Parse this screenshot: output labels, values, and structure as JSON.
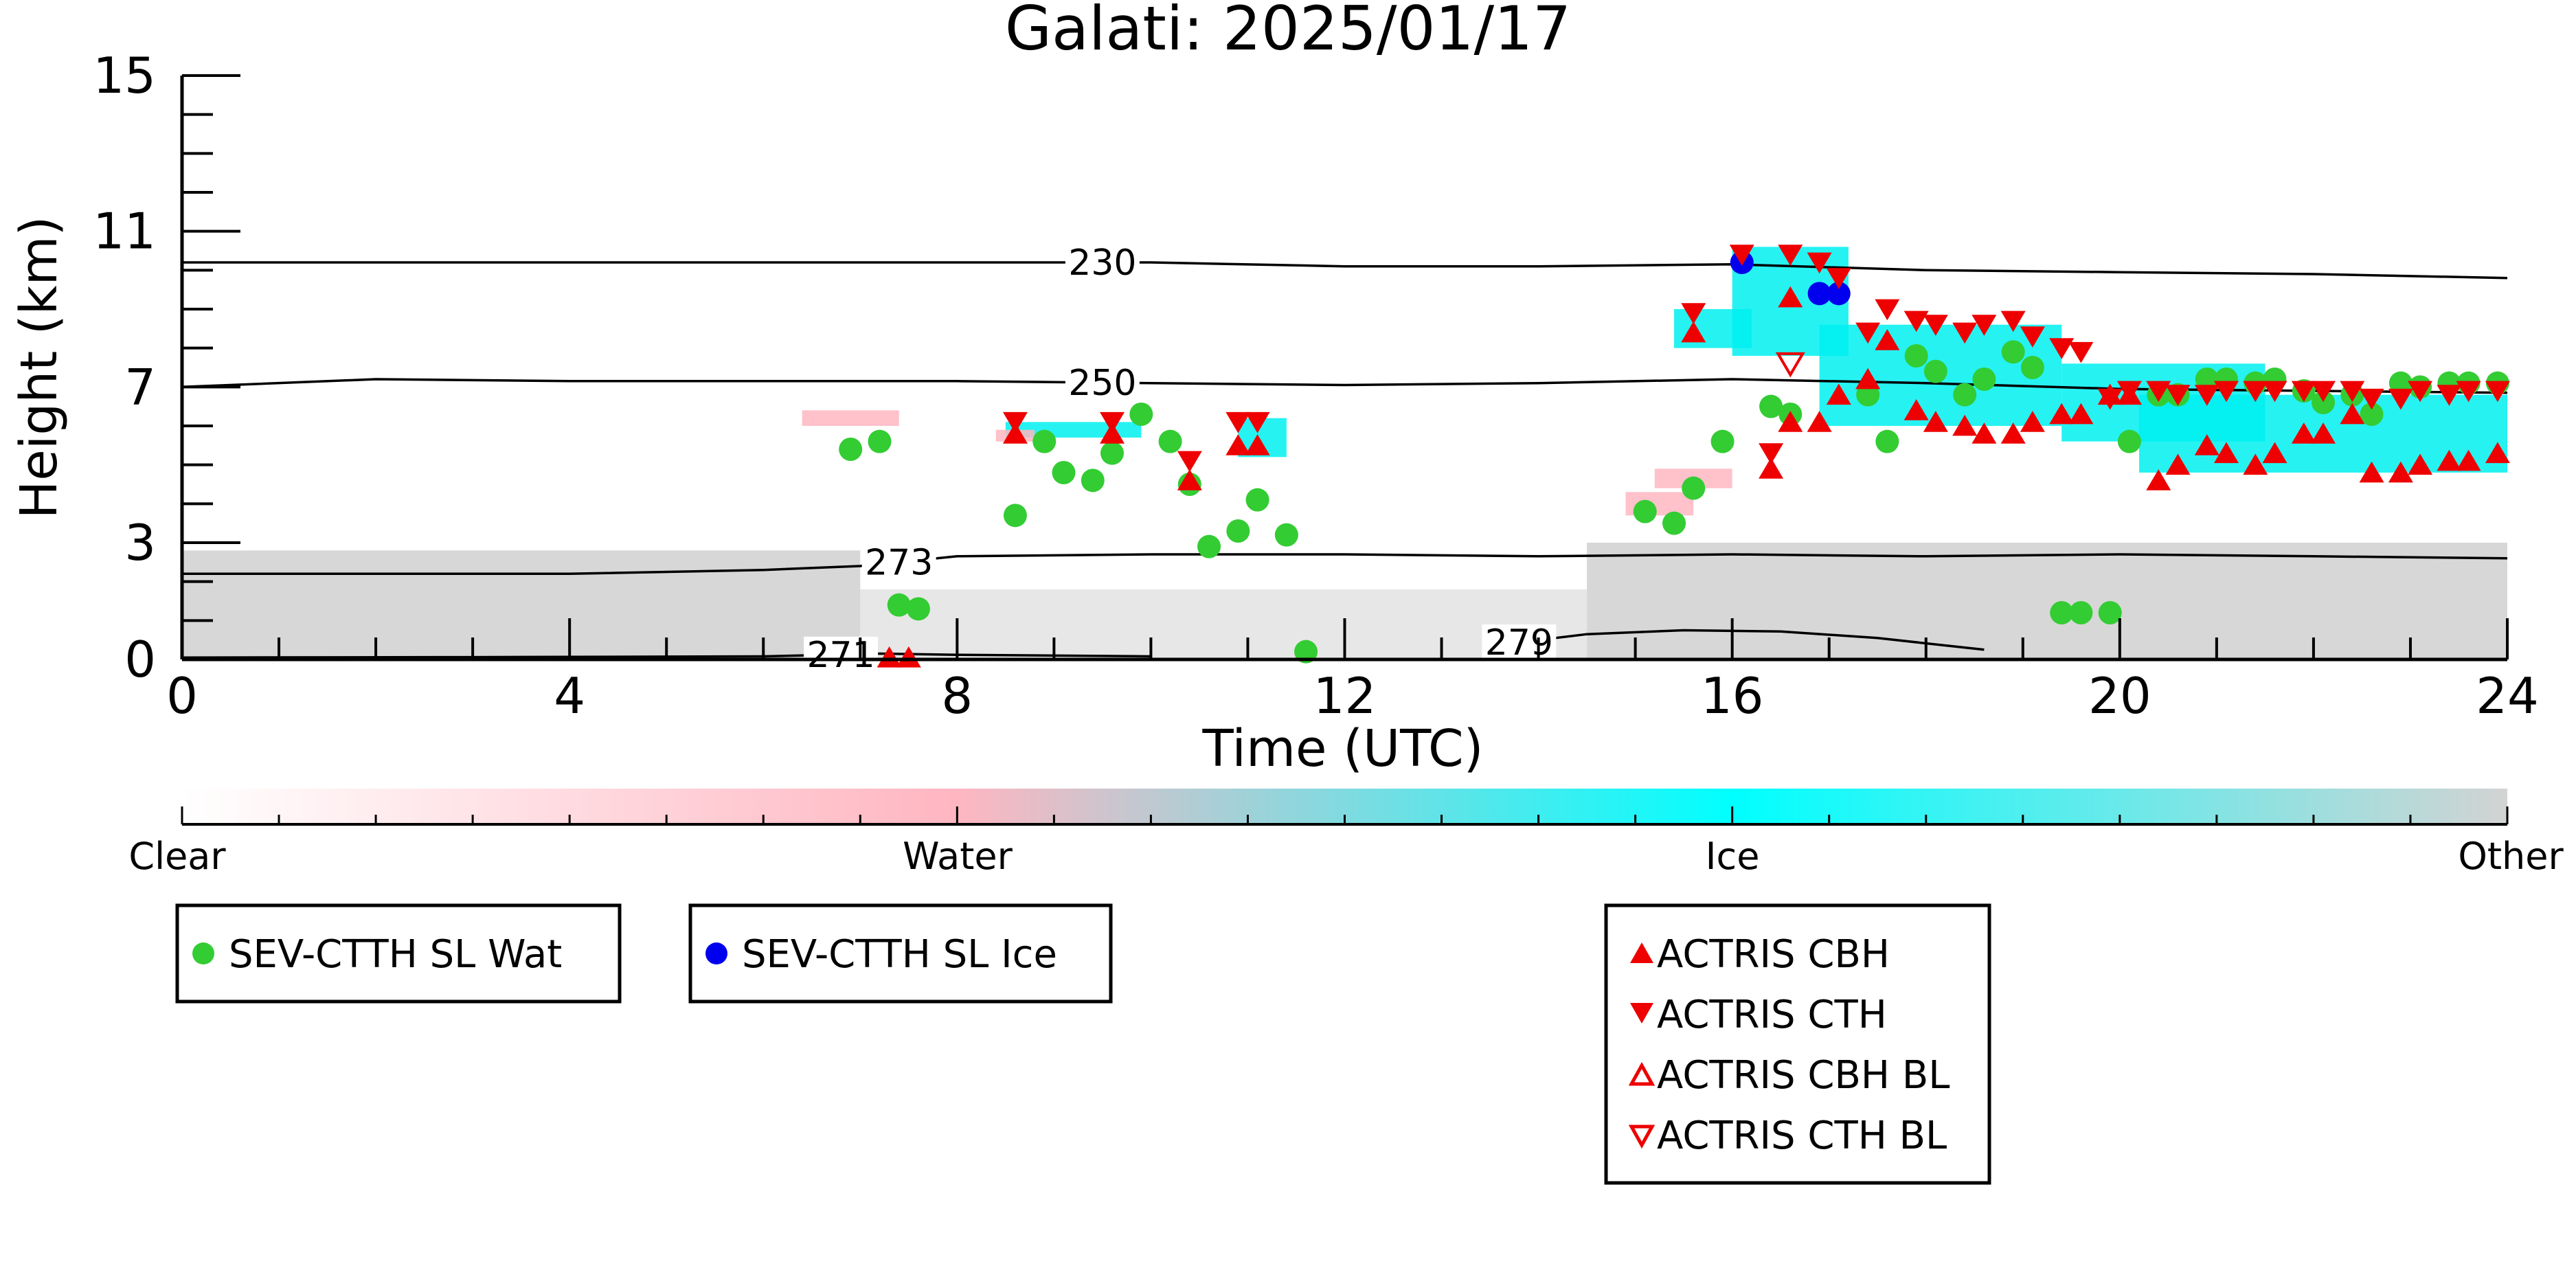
{
  "chart_data": {
    "type": "scatter",
    "title": "Galati: 2025/01/17",
    "xlabel": "Time (UTC)",
    "ylabel": "Height (km)",
    "xlim": [
      0,
      24
    ],
    "ylim": [
      0,
      15
    ],
    "x_ticks": [
      0,
      4,
      8,
      12,
      16,
      20,
      24
    ],
    "y_ticks": [
      0,
      3,
      7,
      11,
      15
    ],
    "contours": [
      {
        "label": "230",
        "label_x": 9.5,
        "points": [
          [
            0,
            10.2
          ],
          [
            4,
            10.2
          ],
          [
            8,
            10.2
          ],
          [
            10,
            10.2
          ],
          [
            12,
            10.1
          ],
          [
            14,
            10.1
          ],
          [
            16,
            10.15
          ],
          [
            18,
            10.0
          ],
          [
            20,
            9.95
          ],
          [
            22,
            9.9
          ],
          [
            24,
            9.8
          ]
        ]
      },
      {
        "label": "250",
        "label_x": 9.5,
        "points": [
          [
            0,
            7.0
          ],
          [
            2,
            7.2
          ],
          [
            4,
            7.15
          ],
          [
            8,
            7.15
          ],
          [
            10,
            7.1
          ],
          [
            12,
            7.05
          ],
          [
            14,
            7.1
          ],
          [
            16,
            7.2
          ],
          [
            18,
            7.1
          ],
          [
            20,
            6.95
          ],
          [
            22,
            6.9
          ],
          [
            24,
            6.85
          ]
        ]
      },
      {
        "label": "273",
        "label_x": 7.4,
        "points": [
          [
            0,
            2.2
          ],
          [
            1,
            2.2
          ],
          [
            2,
            2.2
          ],
          [
            4,
            2.2
          ],
          [
            6,
            2.3
          ],
          [
            7,
            2.4
          ],
          [
            8,
            2.65
          ],
          [
            10,
            2.7
          ],
          [
            12,
            2.7
          ],
          [
            14,
            2.65
          ],
          [
            16,
            2.7
          ],
          [
            18,
            2.65
          ],
          [
            20,
            2.7
          ],
          [
            22,
            2.65
          ],
          [
            24,
            2.6
          ]
        ]
      },
      {
        "label": "279",
        "label_x": 13.8,
        "points": [
          [
            13.5,
            0.35
          ],
          [
            14.5,
            0.65
          ],
          [
            15.5,
            0.75
          ],
          [
            16.5,
            0.72
          ],
          [
            17.5,
            0.55
          ],
          [
            18.6,
            0.25
          ]
        ]
      },
      {
        "label": "271",
        "label_x": 6.8,
        "points": [
          [
            0,
            0.05
          ],
          [
            3,
            0.06
          ],
          [
            6,
            0.08
          ],
          [
            7.2,
            0.15
          ],
          [
            8,
            0.12
          ],
          [
            10,
            0.08
          ]
        ]
      }
    ],
    "colorbar": {
      "labels": [
        "Clear",
        "Water",
        "Ice",
        "Other"
      ],
      "colors": [
        "#ffffff",
        "#ffb6c1",
        "#00ffff",
        "#d3d3d3"
      ]
    },
    "series": [
      {
        "name": "SEV-CTTH SL Wat",
        "marker": "circle",
        "color": "#33cc33",
        "points": [
          [
            6.9,
            5.4
          ],
          [
            7.2,
            5.6
          ],
          [
            7.4,
            1.4
          ],
          [
            7.6,
            1.3
          ],
          [
            8.6,
            3.7
          ],
          [
            8.9,
            5.6
          ],
          [
            9.1,
            4.8
          ],
          [
            9.4,
            4.6
          ],
          [
            9.6,
            5.3
          ],
          [
            9.9,
            6.3
          ],
          [
            10.2,
            5.6
          ],
          [
            10.4,
            4.5
          ],
          [
            10.6,
            2.9
          ],
          [
            10.9,
            3.3
          ],
          [
            11.1,
            4.1
          ],
          [
            11.4,
            3.2
          ],
          [
            11.6,
            0.2
          ],
          [
            15.1,
            3.8
          ],
          [
            15.4,
            3.5
          ],
          [
            15.6,
            4.4
          ],
          [
            15.9,
            5.6
          ],
          [
            16.4,
            6.5
          ],
          [
            16.6,
            6.3
          ],
          [
            17.4,
            6.8
          ],
          [
            17.6,
            5.6
          ],
          [
            17.9,
            7.8
          ],
          [
            18.1,
            7.4
          ],
          [
            18.4,
            6.8
          ],
          [
            18.6,
            7.2
          ],
          [
            18.9,
            7.9
          ],
          [
            19.1,
            7.5
          ],
          [
            19.4,
            1.2
          ],
          [
            19.6,
            1.2
          ],
          [
            19.9,
            1.2
          ],
          [
            20.1,
            5.6
          ],
          [
            20.4,
            6.8
          ],
          [
            20.6,
            6.8
          ],
          [
            20.9,
            7.2
          ],
          [
            21.1,
            7.2
          ],
          [
            21.4,
            7.1
          ],
          [
            21.6,
            7.2
          ],
          [
            21.9,
            6.9
          ],
          [
            22.1,
            6.6
          ],
          [
            22.4,
            6.8
          ],
          [
            22.6,
            6.3
          ],
          [
            22.9,
            7.1
          ],
          [
            23.1,
            7.0
          ],
          [
            23.4,
            7.1
          ],
          [
            23.6,
            7.1
          ],
          [
            23.9,
            7.1
          ]
        ]
      },
      {
        "name": "SEV-CTTH SL Ice",
        "marker": "circle",
        "color": "#0000ee",
        "points": [
          [
            16.1,
            10.2
          ],
          [
            16.9,
            9.4
          ],
          [
            17.1,
            9.4
          ]
        ]
      },
      {
        "name": "ACTRIS CBH",
        "marker": "triangle-up",
        "color": "#ee0000",
        "points": [
          [
            7.3,
            0.05
          ],
          [
            7.5,
            0.05
          ],
          [
            8.6,
            5.8
          ],
          [
            9.6,
            5.8
          ],
          [
            10.4,
            4.6
          ],
          [
            10.9,
            5.5
          ],
          [
            11.1,
            5.5
          ],
          [
            15.6,
            8.4
          ],
          [
            16.4,
            4.9
          ],
          [
            16.6,
            9.3
          ],
          [
            16.6,
            6.1
          ],
          [
            16.9,
            6.1
          ],
          [
            17.1,
            6.8
          ],
          [
            17.4,
            7.2
          ],
          [
            17.6,
            8.2
          ],
          [
            17.9,
            6.4
          ],
          [
            18.1,
            6.1
          ],
          [
            18.4,
            6.0
          ],
          [
            18.6,
            5.8
          ],
          [
            18.9,
            5.8
          ],
          [
            19.1,
            6.1
          ],
          [
            19.4,
            6.3
          ],
          [
            19.6,
            6.3
          ],
          [
            19.9,
            6.8
          ],
          [
            20.1,
            6.8
          ],
          [
            20.4,
            4.6
          ],
          [
            20.6,
            5.0
          ],
          [
            20.9,
            5.5
          ],
          [
            21.1,
            5.3
          ],
          [
            21.4,
            5.0
          ],
          [
            21.6,
            5.3
          ],
          [
            21.9,
            5.8
          ],
          [
            22.1,
            5.8
          ],
          [
            22.4,
            6.3
          ],
          [
            22.6,
            4.8
          ],
          [
            22.9,
            4.8
          ],
          [
            23.1,
            5.0
          ],
          [
            23.4,
            5.1
          ],
          [
            23.6,
            5.1
          ],
          [
            23.9,
            5.3
          ]
        ]
      },
      {
        "name": "ACTRIS CTH",
        "marker": "triangle-down",
        "color": "#ee0000",
        "points": [
          [
            8.6,
            6.1
          ],
          [
            9.6,
            6.1
          ],
          [
            10.4,
            5.1
          ],
          [
            10.9,
            6.1
          ],
          [
            11.1,
            6.1
          ],
          [
            15.6,
            8.9
          ],
          [
            16.4,
            5.3
          ],
          [
            16.1,
            10.4
          ],
          [
            16.6,
            10.4
          ],
          [
            16.9,
            10.2
          ],
          [
            17.1,
            9.8
          ],
          [
            17.4,
            8.4
          ],
          [
            17.6,
            9.0
          ],
          [
            17.9,
            8.7
          ],
          [
            18.1,
            8.6
          ],
          [
            18.4,
            8.4
          ],
          [
            18.6,
            8.6
          ],
          [
            18.9,
            8.7
          ],
          [
            19.1,
            8.3
          ],
          [
            19.4,
            8.0
          ],
          [
            19.6,
            7.9
          ],
          [
            19.9,
            6.7
          ],
          [
            20.1,
            6.9
          ],
          [
            20.4,
            6.9
          ],
          [
            20.6,
            6.8
          ],
          [
            20.9,
            6.8
          ],
          [
            21.1,
            6.9
          ],
          [
            21.4,
            6.9
          ],
          [
            21.6,
            6.9
          ],
          [
            21.9,
            6.9
          ],
          [
            22.1,
            6.9
          ],
          [
            22.4,
            6.9
          ],
          [
            22.6,
            6.7
          ],
          [
            22.9,
            6.7
          ],
          [
            23.1,
            6.9
          ],
          [
            23.4,
            6.8
          ],
          [
            23.6,
            6.9
          ],
          [
            23.9,
            6.9
          ]
        ]
      },
      {
        "name": "ACTRIS CBH BL",
        "marker": "triangle-up-open",
        "color": "#ee0000",
        "points": []
      },
      {
        "name": "ACTRIS CTH BL",
        "marker": "triangle-down-open",
        "color": "#ee0000",
        "points": [
          [
            16.6,
            7.6
          ]
        ]
      }
    ]
  }
}
